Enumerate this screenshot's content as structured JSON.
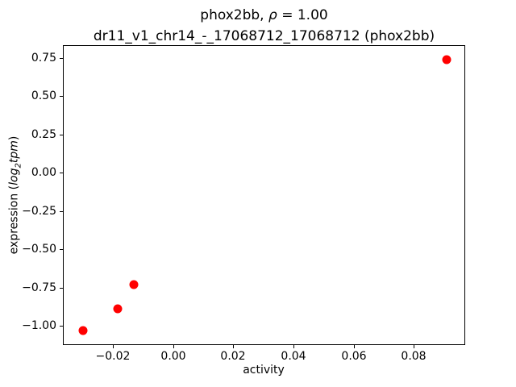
{
  "figure": {
    "title_line1": {
      "prefix": "phox2bb, ",
      "rho": "ρ",
      "suffix": " = 1.00"
    },
    "title_line2": "dr11_v1_chr14_-_17068712_17068712 (phox2bb)",
    "xlabel": "activity",
    "ylabel": {
      "prefix": "expression (",
      "log_word": "log",
      "log_sub": "2",
      "tpm_word": "tpm",
      "suffix": ")"
    }
  },
  "chart_data": {
    "type": "scatter",
    "title": "phox2bb, ρ = 1.00\ndr11_v1_chr14_-_17068712_17068712 (phox2bb)",
    "xlabel": "activity",
    "ylabel": "expression (log2 tpm)",
    "marker_color": "#ff0000",
    "marker_shape": "circle",
    "grid": false,
    "legend": null,
    "xlim": [
      -0.0367,
      0.0971
    ],
    "ylim": [
      -1.126,
      0.832
    ],
    "xticks": [
      -0.02,
      0,
      0.02,
      0.04,
      0.06,
      0.08
    ],
    "xtick_labels": [
      "−0.02",
      "0.00",
      "0.02",
      "0.04",
      "0.06",
      "0.08"
    ],
    "yticks": [
      0.75,
      0.5,
      0.25,
      0,
      -0.25,
      -0.5,
      -0.75,
      -1.0
    ],
    "ytick_labels": [
      "0.75",
      "0.50",
      "0.25",
      "0.00",
      "−0.25",
      "−0.50",
      "−0.75",
      "−1.00"
    ],
    "points": [
      {
        "x": -0.03,
        "y": -1.03
      },
      {
        "x": -0.0185,
        "y": -0.89
      },
      {
        "x": -0.013,
        "y": -0.73
      },
      {
        "x": 0.091,
        "y": 0.74
      }
    ]
  }
}
